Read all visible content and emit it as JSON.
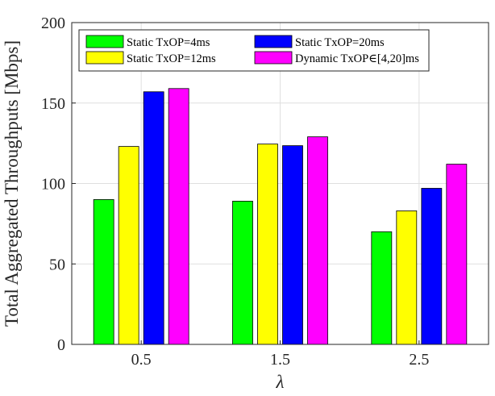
{
  "chart_data": {
    "type": "bar",
    "categories": [
      "0.5",
      "1.5",
      "2.5"
    ],
    "series": [
      {
        "name": "Static TxOP=4ms",
        "color": "#00ff00",
        "values": [
          90,
          89,
          70
        ]
      },
      {
        "name": "Static TxOP=12ms",
        "color": "#ffff00",
        "values": [
          123,
          124.5,
          83
        ]
      },
      {
        "name": "Static TxOP=20ms",
        "color": "#0000ff",
        "values": [
          157,
          123.5,
          97
        ]
      },
      {
        "name": "Dynamic TxOP∈[4,20]ms",
        "color": "#ff00ff",
        "values": [
          159,
          129,
          112
        ]
      }
    ],
    "xlabel": "λ",
    "ylabel": "Total Aggregated Throughputs [Mbps]",
    "ylim": [
      0,
      200
    ],
    "yticks": [
      "0",
      "50",
      "100",
      "150",
      "200"
    ],
    "grid": true,
    "legend_position": "top-left"
  }
}
